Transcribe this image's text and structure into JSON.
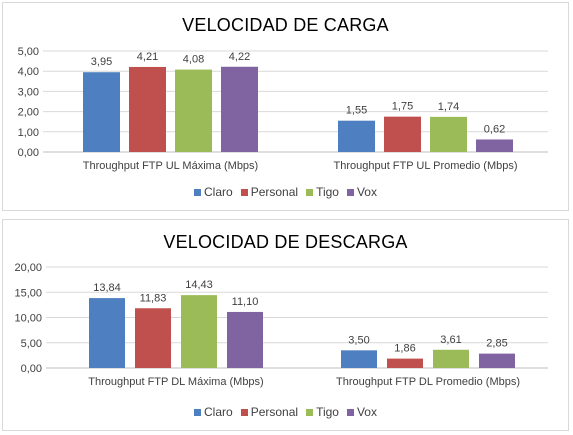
{
  "colors": {
    "Claro": "#4e7fc0",
    "Personal": "#c0504d",
    "Tigo": "#9bbb59",
    "Vox": "#8064a2",
    "grid": "#d9d9d9",
    "axis": "#bfbfbf"
  },
  "chart_data": [
    {
      "type": "bar",
      "title": "VELOCIDAD DE CARGA",
      "categories": [
        "Throughput FTP UL Máxima (Mbps)",
        "Throughput FTP UL Promedio (Mbps)"
      ],
      "series": [
        {
          "name": "Claro",
          "values": [
            3.95,
            1.55
          ],
          "labels": [
            "3,95",
            "1,55"
          ]
        },
        {
          "name": "Personal",
          "values": [
            4.21,
            1.75
          ],
          "labels": [
            "4,21",
            "1,75"
          ]
        },
        {
          "name": "Tigo",
          "values": [
            4.08,
            1.74
          ],
          "labels": [
            "4,08",
            "1,74"
          ]
        },
        {
          "name": "Vox",
          "values": [
            4.22,
            0.62
          ],
          "labels": [
            "4,22",
            "0,62"
          ]
        }
      ],
      "ylim": [
        0,
        5
      ],
      "yticks": [
        "0,00",
        "1,00",
        "2,00",
        "3,00",
        "4,00",
        "5,00"
      ],
      "grid": true,
      "legend": "bottom"
    },
    {
      "type": "bar",
      "title": "VELOCIDAD DE DESCARGA",
      "categories": [
        "Throughput FTP DL Máxima (Mbps)",
        "Throughput FTP DL Promedio (Mbps)"
      ],
      "series": [
        {
          "name": "Claro",
          "values": [
            13.84,
            3.5
          ],
          "labels": [
            "13,84",
            "3,50"
          ]
        },
        {
          "name": "Personal",
          "values": [
            11.83,
            1.86
          ],
          "labels": [
            "11,83",
            "1,86"
          ]
        },
        {
          "name": "Tigo",
          "values": [
            14.43,
            3.61
          ],
          "labels": [
            "14,43",
            "3,61"
          ]
        },
        {
          "name": "Vox",
          "values": [
            11.1,
            2.85
          ],
          "labels": [
            "11,10",
            "2,85"
          ]
        }
      ],
      "ylim": [
        0,
        20
      ],
      "yticks": [
        "0,00",
        "5,00",
        "10,00",
        "15,00",
        "20,00"
      ],
      "grid": true,
      "legend": "bottom"
    }
  ]
}
